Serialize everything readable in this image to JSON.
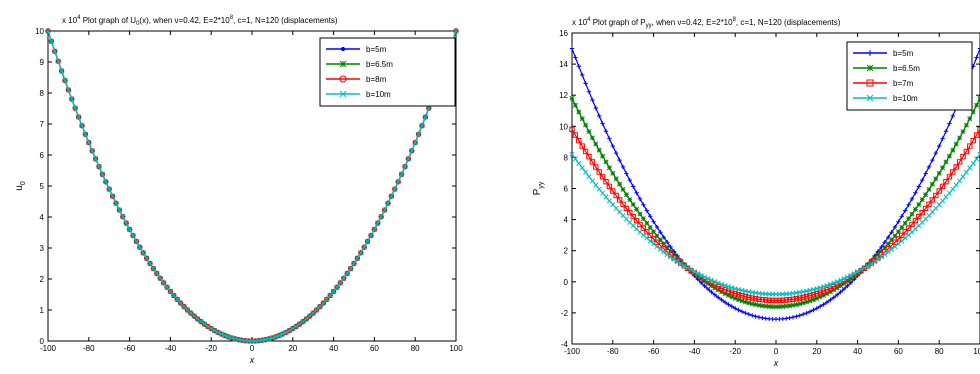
{
  "chart_data": [
    {
      "type": "line",
      "title_prefix": "x 10",
      "title_exp": "4",
      "title_pre": "Plot graph of U",
      "title_sub": "0",
      "title_post": "(x), when ν=0.42, E=2*10",
      "title_e_exp": "8",
      "title_tail": ", c=1, N=120 (displacements)",
      "xlabel": "x",
      "ylabel": "u",
      "ylabel_sub": "0",
      "xlim": [
        -100,
        100
      ],
      "ylim": [
        0,
        10
      ],
      "xticks": [
        -100,
        -80,
        -60,
        -40,
        -20,
        0,
        20,
        40,
        60,
        80,
        100
      ],
      "yticks": [
        0,
        1,
        2,
        3,
        4,
        5,
        6,
        7,
        8,
        9,
        10
      ],
      "grid": false,
      "legend_position": "top-right",
      "curve": "parabola",
      "series": [
        {
          "name": "b=5m",
          "color": "#0000ff",
          "marker": "point",
          "values": [
            {
              "x": -100,
              "y": 10
            },
            {
              "x": 0,
              "y": 0
            },
            {
              "x": 100,
              "y": 10
            }
          ]
        },
        {
          "name": "b=6.5m",
          "color": "#008000",
          "marker": "star",
          "values": [
            {
              "x": -100,
              "y": 10
            },
            {
              "x": 0,
              "y": 0
            },
            {
              "x": 100,
              "y": 10
            }
          ]
        },
        {
          "name": "b=8m",
          "color": "#ff0000",
          "marker": "circle",
          "values": [
            {
              "x": -100,
              "y": 10
            },
            {
              "x": 0,
              "y": 0
            },
            {
              "x": 100,
              "y": 10
            }
          ]
        },
        {
          "name": "b=10m",
          "color": "#00bfbf",
          "marker": "x",
          "values": [
            {
              "x": -100,
              "y": 10
            },
            {
              "x": 0,
              "y": 0
            },
            {
              "x": 100,
              "y": 10
            }
          ]
        }
      ]
    },
    {
      "type": "line",
      "title_prefix": "x 10",
      "title_exp": "4",
      "title_pre": "Plot graph of P",
      "title_sub": "yy",
      "title_post": ", when ν=0.42, E=2*10",
      "title_e_exp": "8",
      "title_tail": ", c=1, N=120 (displacements)",
      "xlabel": "x",
      "ylabel": "P",
      "ylabel_sub": "yy",
      "xlim": [
        -100,
        100
      ],
      "ylim": [
        -4,
        16
      ],
      "xticks": [
        -100,
        -80,
        -60,
        -40,
        -20,
        0,
        20,
        40,
        60,
        80,
        100
      ],
      "yticks": [
        -4,
        -2,
        0,
        2,
        4,
        6,
        8,
        10,
        12,
        14,
        16
      ],
      "grid": false,
      "legend_position": "top-right",
      "curve": "parabola",
      "series": [
        {
          "name": "b=5m",
          "color": "#0000ff",
          "marker": "plus",
          "values": [
            {
              "x": -100,
              "y": 15
            },
            {
              "x": 0,
              "y": -2.4
            },
            {
              "x": 100,
              "y": 15
            }
          ]
        },
        {
          "name": "b=6.5m",
          "color": "#008000",
          "marker": "star",
          "values": [
            {
              "x": -100,
              "y": 11.8
            },
            {
              "x": 0,
              "y": -1.6
            },
            {
              "x": 100,
              "y": 11.8
            }
          ]
        },
        {
          "name": "b=7m",
          "color": "#ff0000",
          "marker": "square",
          "values": [
            {
              "x": -100,
              "y": 9.8
            },
            {
              "x": 0,
              "y": -1.2
            },
            {
              "x": 100,
              "y": 9.8
            }
          ]
        },
        {
          "name": "b=10m",
          "color": "#00bfbf",
          "marker": "x",
          "values": [
            {
              "x": -100,
              "y": 8.2
            },
            {
              "x": 0,
              "y": -0.8
            },
            {
              "x": 100,
              "y": 8.2
            }
          ]
        }
      ]
    }
  ]
}
